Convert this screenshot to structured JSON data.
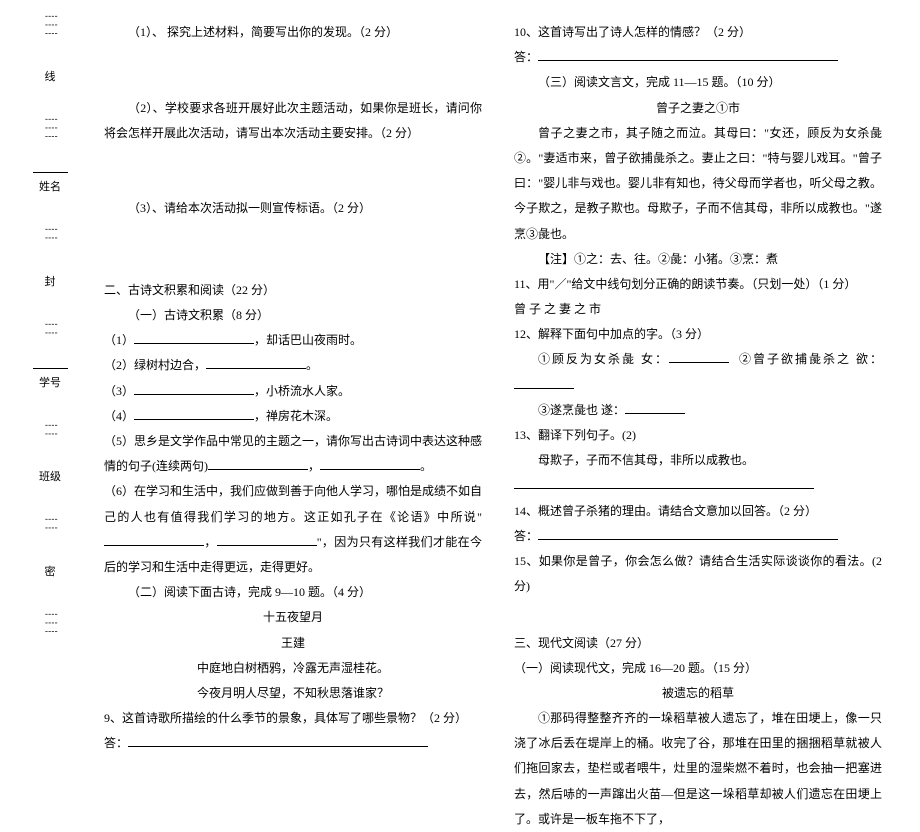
{
  "margin": {
    "labels": [
      "线",
      "姓名",
      "封",
      "学号",
      "班级",
      "密"
    ]
  },
  "left": {
    "q1": "（1）、 探究上述材料，简要写出你的发现。（2 分）",
    "q2": "（2）、学校要求各班开展好此次主题活动，如果你是班长，请问你将会怎样开展此次活动，请写出本次活动主要安排。（2 分）",
    "q3": "（3）、请给本次活动拟一则宣传标语。（2 分）",
    "sec2": "二、古诗文积累和阅读（22 分）",
    "sec2a": "（一）古诗文积累（8 分）",
    "l1a": "（1）",
    "l1b": "，却话巴山夜雨时。",
    "l2a": "（2）绿树村边合，",
    "l2b": "。",
    "l3a": "（3）",
    "l3b": "，小桥流水人家。",
    "l4a": "（4）",
    "l4b": "，禅房花木深。",
    "l5": "（5）思乡是文学作品中常见的主题之一，请你写出古诗词中表达这种感情的句子(连续两句)",
    "l5b": "，",
    "l5c": "。",
    "l6a": "（6）在学习和生活中，我们应做到善于向他人学习，哪怕是成绩不如自己的人也有值得我们学习的地方。这正如孔子在《论语》中所说\"",
    "l6b": "，",
    "l6c": "\"，因为只有这样我们才能在今后的学习和生活中走得更远，走得更好。",
    "sec2b": "（二）阅读下面古诗，完成 9—10 题。（4 分）",
    "poem_title": "十五夜望月",
    "poem_author": "王建",
    "poem_l1": "中庭地白树栖鸦，冷露无声湿桂花。",
    "poem_l2": "今夜月明人尽望，不知秋思落谁家？",
    "q9": "9、这首诗歌所描绘的什么季节的景象，具体写了哪些景物？（2 分）",
    "ans": "答："
  },
  "right": {
    "q10": "10、这首诗写出了诗人怎样的情感？（2 分）",
    "ans": "答：",
    "sec3": "（三）阅读文言文，完成 11—15 题。（10 分）",
    "title": "曾子之妻之①市",
    "para": "曾子之妻之市，其子随之而泣。其母曰：\"女还，顾反为女杀彘②。\"妻适市来，曾子欲捕彘杀之。妻止之曰：\"特与婴儿戏耳。\"曾子曰：\"婴儿非与戏也。婴儿非有知也，待父母而学者也，听父母之教。今子欺之，是教子欺也。母欺子，子而不信其母，非所以成教也。\"遂烹③彘也。",
    "note": "【注】①之：去、往。②彘：小猪。③烹：煮",
    "q11": "11、用\"／\"给文中线句划分正确的朗读节奏。（只划一处）（1 分）",
    "q11_line": "曾 子 之 妻 之 市",
    "q12": "12、解释下面句中加点的字。（3 分）",
    "q12_1a": "①顾反为女杀彘    女：",
    "q12_1b": "②曾子欲捕彘杀之    欲：",
    "q12_2a": "③遂烹彘也        遂：",
    "q13": "13、翻译下列句子。(2)",
    "q13_line": "母欺子，子而不信其母，非所以成教也。",
    "q14": "14、概述曾子杀猪的理由。请结合文意加以回答。（2 分）",
    "ans14": "答：",
    "q15": "15、如果你是曾子，你会怎么做？请结合生活实际谈谈你的看法。(2 分)",
    "sec_modern": "三、现代文阅读（27 分）",
    "sec_modern_a": "（一）阅读现代文，完成 16—20 题。（15 分）",
    "modern_title": "被遗忘的稻草",
    "modern_p1": "①那码得整整齐齐的一垛稻草被人遗忘了，堆在田埂上，像一只浇了冰后丢在堤岸上的桶。收完了谷，那堆在田里的捆捆稻草就被人们拖回家去，垫栏或者喂牛，灶里的湿柴燃不着时，也会抽一把塞进去，然后哧的一声蹿出火苗—但是这一垛稻草却被人们遗忘在田埂上了。或许是一板车拖不下了，"
  }
}
